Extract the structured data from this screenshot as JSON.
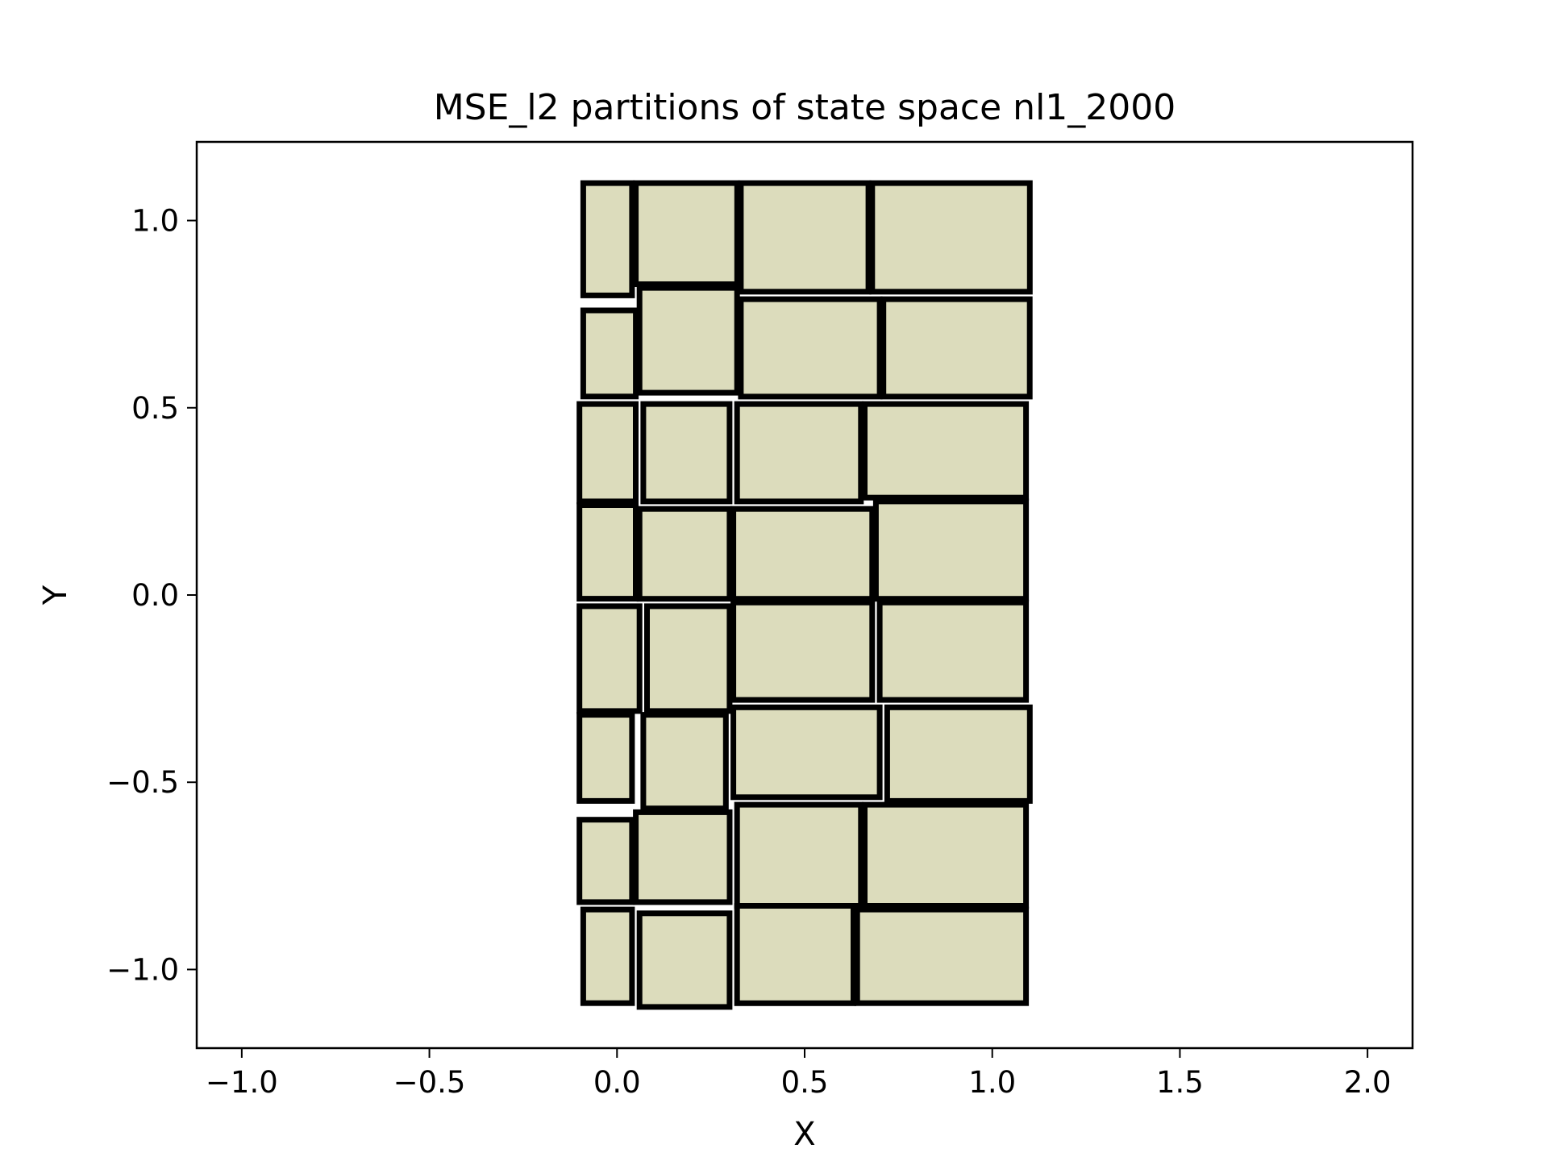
{
  "chart_data": {
    "type": "rectangles",
    "title": "MSE_l2 partitions of state space nl1_2000",
    "xlabel": "X",
    "ylabel": "Y",
    "xlim": [
      -1.12,
      2.12
    ],
    "ylim": [
      -1.21,
      1.21
    ],
    "xticks": [
      -1.0,
      -0.5,
      0.0,
      0.5,
      1.0,
      1.5,
      2.0
    ],
    "xtick_labels": [
      "−1.0",
      "−0.5",
      "0.0",
      "0.5",
      "1.0",
      "1.5",
      "2.0"
    ],
    "yticks": [
      -1.0,
      -0.5,
      0.0,
      0.5,
      1.0
    ],
    "ytick_labels": [
      "−1.0",
      "−0.5",
      "0.0",
      "0.5",
      "1.0"
    ],
    "grid": false,
    "face_color": "#dcdcbc",
    "edge_color": "#000000",
    "rectangles": [
      {
        "x0": -0.09,
        "x1": 0.04,
        "y0": 0.8,
        "y1": 1.1
      },
      {
        "x0": 0.05,
        "x1": 0.32,
        "y0": 0.83,
        "y1": 1.1
      },
      {
        "x0": 0.33,
        "x1": 0.67,
        "y0": 0.81,
        "y1": 1.1
      },
      {
        "x0": 0.68,
        "x1": 1.1,
        "y0": 0.81,
        "y1": 1.1
      },
      {
        "x0": -0.09,
        "x1": 0.05,
        "y0": 0.53,
        "y1": 0.76
      },
      {
        "x0": 0.06,
        "x1": 0.32,
        "y0": 0.54,
        "y1": 0.82
      },
      {
        "x0": 0.33,
        "x1": 0.7,
        "y0": 0.53,
        "y1": 0.79
      },
      {
        "x0": 0.71,
        "x1": 1.1,
        "y0": 0.53,
        "y1": 0.79
      },
      {
        "x0": -0.1,
        "x1": 0.05,
        "y0": 0.25,
        "y1": 0.51
      },
      {
        "x0": 0.07,
        "x1": 0.3,
        "y0": 0.25,
        "y1": 0.51
      },
      {
        "x0": 0.32,
        "x1": 0.65,
        "y0": 0.25,
        "y1": 0.51
      },
      {
        "x0": 0.66,
        "x1": 1.09,
        "y0": 0.26,
        "y1": 0.51
      },
      {
        "x0": -0.1,
        "x1": 0.05,
        "y0": -0.01,
        "y1": 0.24
      },
      {
        "x0": 0.06,
        "x1": 0.3,
        "y0": -0.01,
        "y1": 0.23
      },
      {
        "x0": 0.31,
        "x1": 0.68,
        "y0": -0.01,
        "y1": 0.23
      },
      {
        "x0": 0.69,
        "x1": 1.09,
        "y0": -0.01,
        "y1": 0.25
      },
      {
        "x0": -0.1,
        "x1": 0.06,
        "y0": -0.31,
        "y1": -0.03
      },
      {
        "x0": 0.08,
        "x1": 0.3,
        "y0": -0.31,
        "y1": -0.03
      },
      {
        "x0": 0.31,
        "x1": 0.68,
        "y0": -0.28,
        "y1": -0.02
      },
      {
        "x0": 0.7,
        "x1": 1.09,
        "y0": -0.28,
        "y1": -0.02
      },
      {
        "x0": -0.1,
        "x1": 0.04,
        "y0": -0.55,
        "y1": -0.32
      },
      {
        "x0": 0.07,
        "x1": 0.29,
        "y0": -0.57,
        "y1": -0.32
      },
      {
        "x0": 0.31,
        "x1": 0.7,
        "y0": -0.54,
        "y1": -0.3
      },
      {
        "x0": 0.72,
        "x1": 1.1,
        "y0": -0.55,
        "y1": -0.3
      },
      {
        "x0": -0.1,
        "x1": 0.04,
        "y0": -0.82,
        "y1": -0.6
      },
      {
        "x0": 0.05,
        "x1": 0.3,
        "y0": -0.82,
        "y1": -0.58
      },
      {
        "x0": 0.32,
        "x1": 0.65,
        "y0": -0.83,
        "y1": -0.56
      },
      {
        "x0": 0.66,
        "x1": 1.09,
        "y0": -0.83,
        "y1": -0.56
      },
      {
        "x0": -0.09,
        "x1": 0.04,
        "y0": -1.09,
        "y1": -0.84
      },
      {
        "x0": 0.06,
        "x1": 0.3,
        "y0": -1.1,
        "y1": -0.85
      },
      {
        "x0": 0.32,
        "x1": 0.63,
        "y0": -1.09,
        "y1": -0.83
      },
      {
        "x0": 0.64,
        "x1": 1.09,
        "y0": -1.09,
        "y1": -0.84
      }
    ]
  }
}
